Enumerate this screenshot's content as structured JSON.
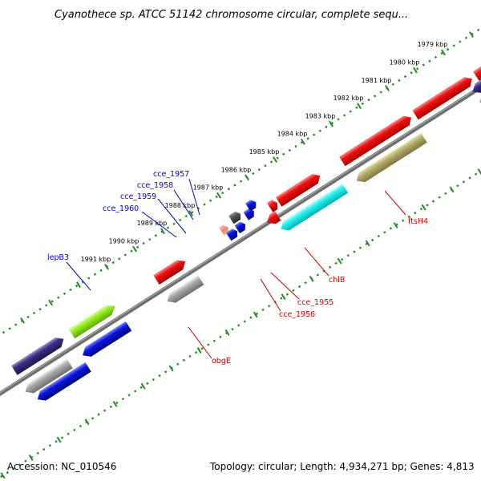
{
  "title": "Cyanothece sp. ATCC 51142 chromosome circular, complete sequ...",
  "footer": {
    "accession": "Accession: NC_010546",
    "topology": "Topology: circular; Length: 4,934,271 bp; Genes: 4,813"
  },
  "scale_labels": [
    "1979 kbp",
    "1980 kbp",
    "1981 kbp",
    "1982 kbp",
    "1983 kbp",
    "1984 kbp",
    "1985 kbp",
    "1986 kbp",
    "1987 kbp",
    "1988 kbp",
    "1989 kbp",
    "1990 kbp",
    "1991 kbp"
  ],
  "gene_labels": {
    "cce_1957": "cce_1957",
    "cce_1958": "cce_1958",
    "cce_1959": "cce_1959",
    "cce_1960": "cce_1960",
    "lepB3": "lepB3",
    "ftsH4": "ftsH4",
    "chlB": "chlB",
    "cce_1955": "cce_1955",
    "cce_1956": "cce_1956",
    "obgE": "obgE"
  },
  "colors": {
    "backbone": "#7a7a7a",
    "ticks": "#228b22",
    "red": "#ee1111",
    "blue": "#0a14dd",
    "navy": "#3a2f86",
    "lime": "#99ee22",
    "cyan": "#22f2f2",
    "olive": "#b5ad6a",
    "gray": "#aaaaaa",
    "dark": "#555555",
    "label_blue": "#0000cc",
    "label_red": "#cc0000"
  }
}
